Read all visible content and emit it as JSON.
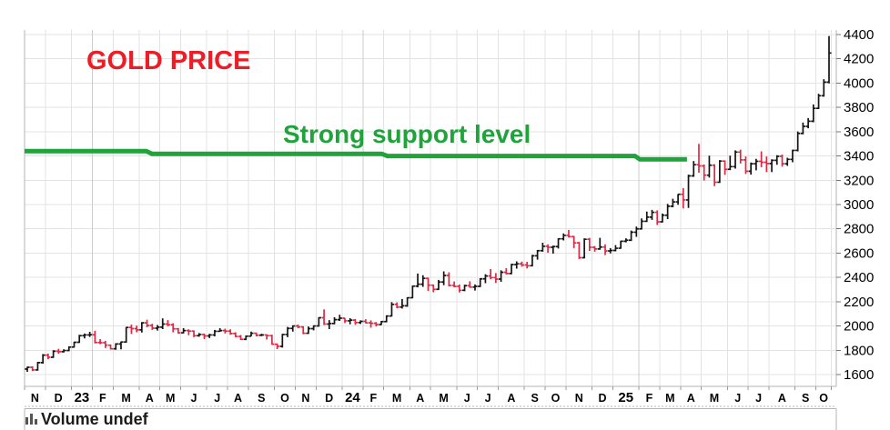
{
  "annotations": {
    "title": {
      "text": "GOLD PRICE",
      "color": "#ee1c25"
    },
    "support": {
      "text": "Strong support level",
      "color": "#21a33c"
    }
  },
  "volume_pane": {
    "label": "Volume undef",
    "icon": "volume-histogram-icon",
    "icon_color": "#555555"
  },
  "colors": {
    "up_bar": "#141414",
    "down_bar": "#dc2a44",
    "support_line": "#21a33c",
    "grid": "#e3e3e3",
    "grid_year": "#cccccc",
    "border": "#b5b5b5",
    "axis_text": "#000000"
  },
  "chart_data": {
    "type": "ohlc",
    "title": "GOLD PRICE",
    "xlabel": "",
    "ylabel": "",
    "interval": "weekly",
    "grid": true,
    "axis_side": "right",
    "ylim": [
      1575,
      4440
    ],
    "y_ticks": [
      1600,
      1800,
      2000,
      2200,
      2400,
      2600,
      2800,
      3000,
      3200,
      3400,
      3600,
      3800,
      4000,
      4200,
      4400
    ],
    "x_months": [
      {
        "label": "N",
        "weeks": 4,
        "year": false
      },
      {
        "label": "D",
        "weeks": 5,
        "year": false
      },
      {
        "label": "23",
        "weeks": 4,
        "year": true
      },
      {
        "label": "F",
        "weeks": 4,
        "year": false
      },
      {
        "label": "M",
        "weeks": 5,
        "year": false
      },
      {
        "label": "A",
        "weeks": 4,
        "year": false
      },
      {
        "label": "M",
        "weeks": 4,
        "year": false
      },
      {
        "label": "J",
        "weeks": 5,
        "year": false
      },
      {
        "label": "J",
        "weeks": 4,
        "year": false
      },
      {
        "label": "A",
        "weeks": 4,
        "year": false
      },
      {
        "label": "S",
        "weeks": 5,
        "year": false
      },
      {
        "label": "O",
        "weeks": 4,
        "year": false
      },
      {
        "label": "N",
        "weeks": 4,
        "year": false
      },
      {
        "label": "D",
        "weeks": 5,
        "year": false
      },
      {
        "label": "24",
        "weeks": 4,
        "year": true
      },
      {
        "label": "F",
        "weeks": 4,
        "year": false
      },
      {
        "label": "M",
        "weeks": 5,
        "year": false
      },
      {
        "label": "A",
        "weeks": 4,
        "year": false
      },
      {
        "label": "M",
        "weeks": 5,
        "year": false
      },
      {
        "label": "J",
        "weeks": 4,
        "year": false
      },
      {
        "label": "J",
        "weeks": 4,
        "year": false
      },
      {
        "label": "A",
        "weeks": 5,
        "year": false
      },
      {
        "label": "S",
        "weeks": 4,
        "year": false
      },
      {
        "label": "O",
        "weeks": 4,
        "year": false
      },
      {
        "label": "N",
        "weeks": 5,
        "year": false
      },
      {
        "label": "D",
        "weeks": 4,
        "year": false
      },
      {
        "label": "25",
        "weeks": 5,
        "year": true
      },
      {
        "label": "F",
        "weeks": 4,
        "year": false
      },
      {
        "label": "M",
        "weeks": 4,
        "year": false
      },
      {
        "label": "A",
        "weeks": 4,
        "year": false
      },
      {
        "label": "M",
        "weeks": 5,
        "year": false
      },
      {
        "label": "J",
        "weeks": 4,
        "year": false
      },
      {
        "label": "J",
        "weeks": 4,
        "year": false
      },
      {
        "label": "A",
        "weeks": 5,
        "year": false
      },
      {
        "label": "S",
        "weeks": 4,
        "year": false
      },
      {
        "label": "O",
        "weeks": 3,
        "year": false
      }
    ],
    "support_line": {
      "label": "Strong support level",
      "width": 5,
      "points": [
        [
          0.0,
          3440
        ],
        [
          0.15,
          3440
        ],
        [
          0.157,
          3418
        ],
        [
          0.44,
          3418
        ],
        [
          0.447,
          3400
        ],
        [
          0.752,
          3400
        ],
        [
          0.758,
          3372
        ],
        [
          0.816,
          3372
        ]
      ]
    },
    "bars": [
      [
        1645,
        1665,
        1622,
        1660
      ],
      [
        1660,
        1668,
        1628,
        1638
      ],
      [
        1638,
        1705,
        1632,
        1698
      ],
      [
        1698,
        1768,
        1690,
        1760
      ],
      [
        1760,
        1772,
        1726,
        1742
      ],
      [
        1742,
        1800,
        1738,
        1792
      ],
      [
        1792,
        1812,
        1772,
        1788
      ],
      [
        1788,
        1808,
        1782,
        1798
      ],
      [
        1798,
        1832,
        1792,
        1826
      ],
      [
        1826,
        1870,
        1822,
        1866
      ],
      [
        1866,
        1928,
        1860,
        1920
      ],
      [
        1920,
        1938,
        1898,
        1926
      ],
      [
        1926,
        1952,
        1910,
        1928
      ],
      [
        1928,
        1960,
        1856,
        1864
      ],
      [
        1864,
        1892,
        1850,
        1862
      ],
      [
        1862,
        1878,
        1818,
        1842
      ],
      [
        1842,
        1848,
        1806,
        1812
      ],
      [
        1812,
        1858,
        1804,
        1852
      ],
      [
        1852,
        1872,
        1808,
        1868
      ],
      [
        1868,
        1992,
        1862,
        1988
      ],
      [
        1988,
        2012,
        1934,
        1978
      ],
      [
        1978,
        2002,
        1948,
        1968
      ],
      [
        1968,
        2032,
        1946,
        2026
      ],
      [
        2026,
        2052,
        1988,
        2004
      ],
      [
        2004,
        2018,
        1968,
        1982
      ],
      [
        1982,
        2008,
        1962,
        1990
      ],
      [
        1990,
        2062,
        1974,
        2016
      ],
      [
        2016,
        2048,
        1998,
        2010
      ],
      [
        2010,
        2022,
        1948,
        1976
      ],
      [
        1976,
        1984,
        1936,
        1944
      ],
      [
        1944,
        1982,
        1938,
        1962
      ],
      [
        1962,
        1972,
        1924,
        1958
      ],
      [
        1958,
        1964,
        1908,
        1920
      ],
      [
        1920,
        1942,
        1912,
        1930
      ],
      [
        1930,
        1938,
        1892,
        1918
      ],
      [
        1918,
        1936,
        1900,
        1926
      ],
      [
        1926,
        1968,
        1914,
        1956
      ],
      [
        1956,
        1982,
        1952,
        1962
      ],
      [
        1962,
        1978,
        1938,
        1958
      ],
      [
        1958,
        1972,
        1928,
        1938
      ],
      [
        1938,
        1948,
        1908,
        1914
      ],
      [
        1914,
        1926,
        1884,
        1890
      ],
      [
        1890,
        1922,
        1884,
        1916
      ],
      [
        1916,
        1954,
        1914,
        1940
      ],
      [
        1940,
        1946,
        1914,
        1924
      ],
      [
        1924,
        1936,
        1916,
        1926
      ],
      [
        1926,
        1932,
        1888,
        1920
      ],
      [
        1920,
        1928,
        1846,
        1850
      ],
      [
        1850,
        1856,
        1810,
        1832
      ],
      [
        1832,
        1936,
        1822,
        1930
      ],
      [
        1930,
        1992,
        1908,
        1980
      ],
      [
        1980,
        2006,
        1954,
        2000
      ],
      [
        2000,
        2012,
        1982,
        1992
      ],
      [
        1992,
        1998,
        1932,
        1940
      ],
      [
        1940,
        1996,
        1934,
        1978
      ],
      [
        1978,
        2006,
        1964,
        2000
      ],
      [
        2000,
        2072,
        1994,
        2068
      ],
      [
        2068,
        2136,
        2008,
        2016
      ],
      [
        2016,
        2048,
        1974,
        2020
      ],
      [
        2020,
        2072,
        2014,
        2052
      ],
      [
        2052,
        2092,
        2042,
        2064
      ],
      [
        2064,
        2066,
        2024,
        2042
      ],
      [
        2042,
        2064,
        2014,
        2048
      ],
      [
        2048,
        2058,
        2010,
        2028
      ],
      [
        2028,
        2046,
        2016,
        2038
      ],
      [
        2038,
        2056,
        2022,
        2026
      ],
      [
        2026,
        2046,
        1986,
        2022
      ],
      [
        2022,
        2032,
        1996,
        2012
      ],
      [
        2012,
        2042,
        2008,
        2036
      ],
      [
        2036,
        2088,
        2030,
        2082
      ],
      [
        2082,
        2196,
        2078,
        2178
      ],
      [
        2178,
        2194,
        2146,
        2156
      ],
      [
        2156,
        2222,
        2144,
        2166
      ],
      [
        2166,
        2236,
        2158,
        2232
      ],
      [
        2232,
        2332,
        2228,
        2328
      ],
      [
        2328,
        2432,
        2318,
        2344
      ],
      [
        2344,
        2418,
        2322,
        2392
      ],
      [
        2392,
        2398,
        2288,
        2336
      ],
      [
        2336,
        2342,
        2278,
        2302
      ],
      [
        2302,
        2380,
        2296,
        2362
      ],
      [
        2362,
        2450,
        2336,
        2416
      ],
      [
        2416,
        2442,
        2326,
        2334
      ],
      [
        2334,
        2366,
        2318,
        2326
      ],
      [
        2326,
        2342,
        2276,
        2294
      ],
      [
        2294,
        2340,
        2286,
        2332
      ],
      [
        2332,
        2368,
        2314,
        2320
      ],
      [
        2320,
        2342,
        2292,
        2326
      ],
      [
        2326,
        2394,
        2320,
        2388
      ],
      [
        2388,
        2426,
        2352,
        2412
      ],
      [
        2412,
        2468,
        2384,
        2398
      ],
      [
        2398,
        2436,
        2354,
        2386
      ],
      [
        2386,
        2458,
        2364,
        2442
      ],
      [
        2442,
        2476,
        2424,
        2432
      ],
      [
        2432,
        2512,
        2426,
        2506
      ],
      [
        2506,
        2532,
        2472,
        2512
      ],
      [
        2512,
        2530,
        2488,
        2502
      ],
      [
        2502,
        2528,
        2474,
        2496
      ],
      [
        2496,
        2586,
        2490,
        2578
      ],
      [
        2578,
        2626,
        2546,
        2620
      ],
      [
        2620,
        2686,
        2612,
        2656
      ],
      [
        2656,
        2672,
        2602,
        2648
      ],
      [
        2648,
        2662,
        2596,
        2654
      ],
      [
        2654,
        2722,
        2638,
        2718
      ],
      [
        2718,
        2762,
        2704,
        2746
      ],
      [
        2746,
        2790,
        2728,
        2736
      ],
      [
        2736,
        2742,
        2642,
        2684
      ],
      [
        2684,
        2692,
        2552,
        2562
      ],
      [
        2562,
        2722,
        2556,
        2714
      ],
      [
        2714,
        2726,
        2618,
        2648
      ],
      [
        2648,
        2658,
        2612,
        2634
      ],
      [
        2634,
        2726,
        2628,
        2650
      ],
      [
        2650,
        2672,
        2584,
        2618
      ],
      [
        2618,
        2642,
        2598,
        2622
      ],
      [
        2622,
        2666,
        2614,
        2640
      ],
      [
        2640,
        2702,
        2636,
        2698
      ],
      [
        2698,
        2722,
        2688,
        2706
      ],
      [
        2706,
        2786,
        2700,
        2772
      ],
      [
        2772,
        2818,
        2734,
        2800
      ],
      [
        2800,
        2886,
        2794,
        2862
      ],
      [
        2862,
        2942,
        2856,
        2896
      ],
      [
        2896,
        2956,
        2874,
        2936
      ],
      [
        2936,
        2952,
        2832,
        2858
      ],
      [
        2858,
        2926,
        2852,
        2912
      ],
      [
        2912,
        3006,
        2880,
        2986
      ],
      [
        2986,
        3048,
        2978,
        3022
      ],
      [
        3022,
        3086,
        2998,
        3084
      ],
      [
        3084,
        3136,
        2968,
        3038
      ],
      [
        3038,
        3246,
        2972,
        3236
      ],
      [
        3236,
        3358,
        3228,
        3328
      ],
      [
        3328,
        3500,
        3262,
        3318
      ],
      [
        3318,
        3330,
        3198,
        3242
      ],
      [
        3242,
        3402,
        3222,
        3324
      ],
      [
        3324,
        3332,
        3152,
        3184
      ],
      [
        3184,
        3366,
        3178,
        3358
      ],
      [
        3358,
        3364,
        3244,
        3290
      ],
      [
        3290,
        3402,
        3284,
        3312
      ],
      [
        3312,
        3446,
        3296,
        3432
      ],
      [
        3432,
        3452,
        3338,
        3368
      ],
      [
        3368,
        3396,
        3252,
        3274
      ],
      [
        3274,
        3346,
        3246,
        3336
      ],
      [
        3336,
        3376,
        3282,
        3356
      ],
      [
        3356,
        3438,
        3308,
        3348
      ],
      [
        3348,
        3396,
        3268,
        3338
      ],
      [
        3338,
        3372,
        3268,
        3364
      ],
      [
        3364,
        3406,
        3328,
        3398
      ],
      [
        3398,
        3412,
        3312,
        3336
      ],
      [
        3336,
        3386,
        3318,
        3372
      ],
      [
        3372,
        3452,
        3348,
        3446
      ],
      [
        3446,
        3602,
        3438,
        3586
      ],
      [
        3586,
        3676,
        3578,
        3644
      ],
      [
        3644,
        3712,
        3628,
        3686
      ],
      [
        3686,
        3824,
        3678,
        3792
      ],
      [
        3792,
        3912,
        3786,
        3896
      ],
      [
        3896,
        4032,
        3888,
        4008
      ],
      [
        4008,
        4388,
        3998,
        4248
      ]
    ]
  }
}
